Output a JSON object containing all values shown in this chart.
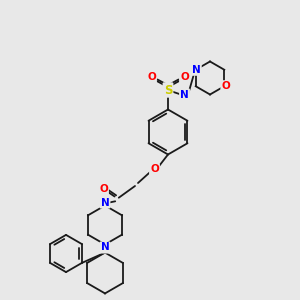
{
  "background_color": "#e8e8e8",
  "bond_color": "#1a1a1a",
  "atom_colors": {
    "O": "#ff0000",
    "N": "#0000ff",
    "S": "#cccc00",
    "C": "#1a1a1a"
  },
  "figsize": [
    3.0,
    3.0
  ],
  "dpi": 100,
  "xlim": [
    0,
    10
  ],
  "ylim": [
    0,
    10
  ]
}
